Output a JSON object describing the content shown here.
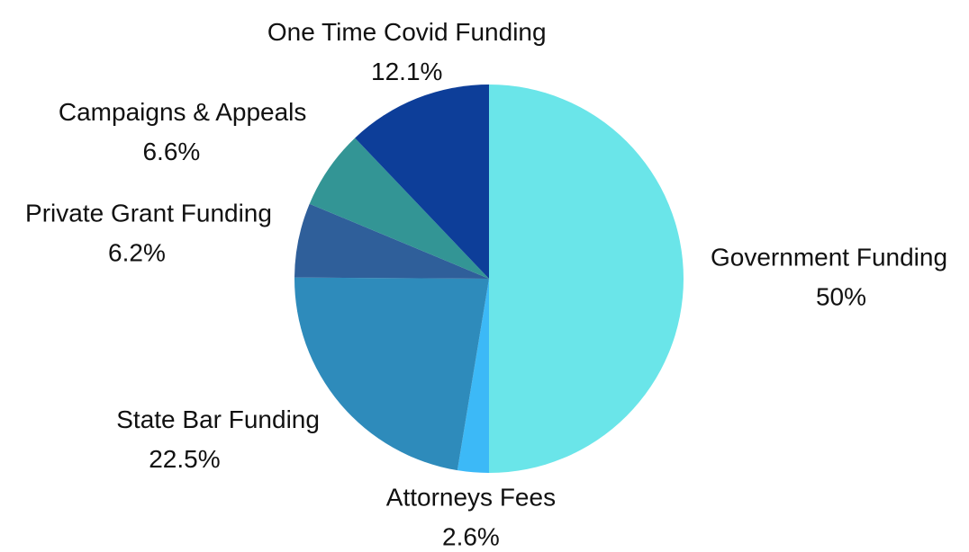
{
  "chart_data": {
    "type": "pie",
    "categories": [
      "Government Funding",
      "Attorneys Fees",
      "State Bar Funding",
      "Private Grant Funding",
      "Campaigns & Appeals",
      "One Time Covid Funding"
    ],
    "values": [
      50,
      2.6,
      22.5,
      6.2,
      6.6,
      12.1
    ],
    "value_labels": [
      "50%",
      "2.6%",
      "22.5%",
      "6.2%",
      "6.6%",
      "12.1%"
    ],
    "colors": [
      "#6ae5e9",
      "#3cb9f7",
      "#2e8bbb",
      "#2f5f9a",
      "#339595",
      "#0d3e99"
    ]
  }
}
